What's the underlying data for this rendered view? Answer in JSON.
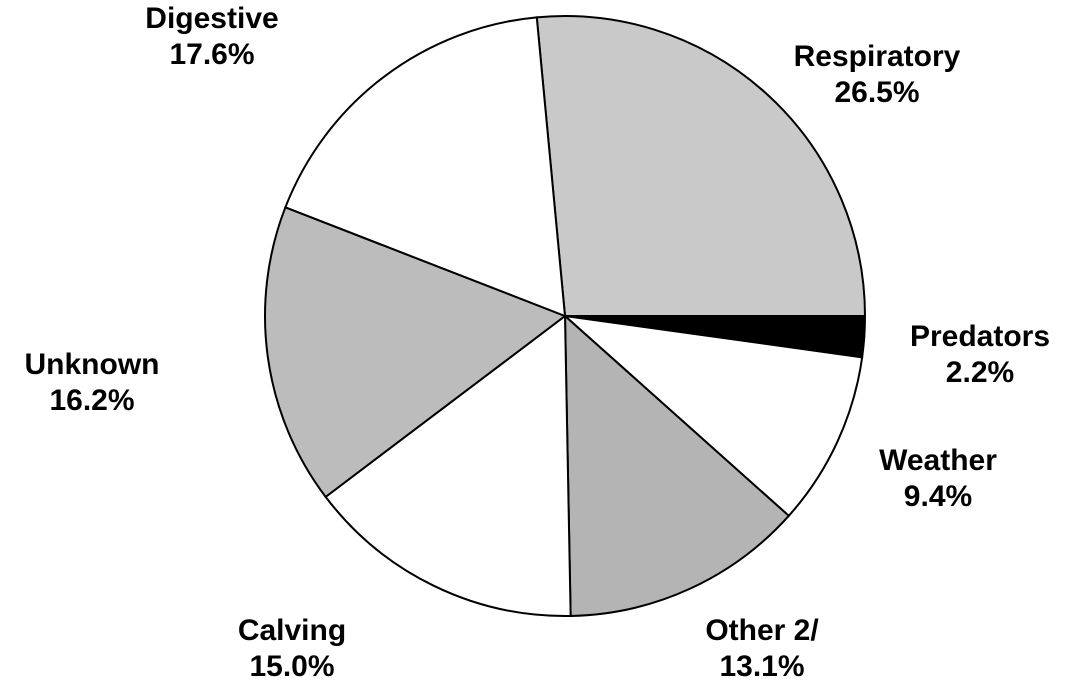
{
  "chart_data": {
    "type": "pie",
    "categories": [
      "Respiratory",
      "Predators",
      "Weather",
      "Other 2/",
      "Calving",
      "Unknown",
      "Digestive"
    ],
    "values": [
      26.5,
      2.2,
      9.4,
      13.1,
      15.0,
      16.2,
      17.6
    ],
    "value_labels": [
      "26.5%",
      "2.2%",
      "9.4%",
      "13.1%",
      "15.0%",
      "16.2%",
      "17.6%"
    ],
    "colors": [
      "#c9c9c9",
      "#000000",
      "#ffffff",
      "#b4b4b4",
      "#ffffff",
      "#bcbcbc",
      "#ffffff"
    ]
  }
}
